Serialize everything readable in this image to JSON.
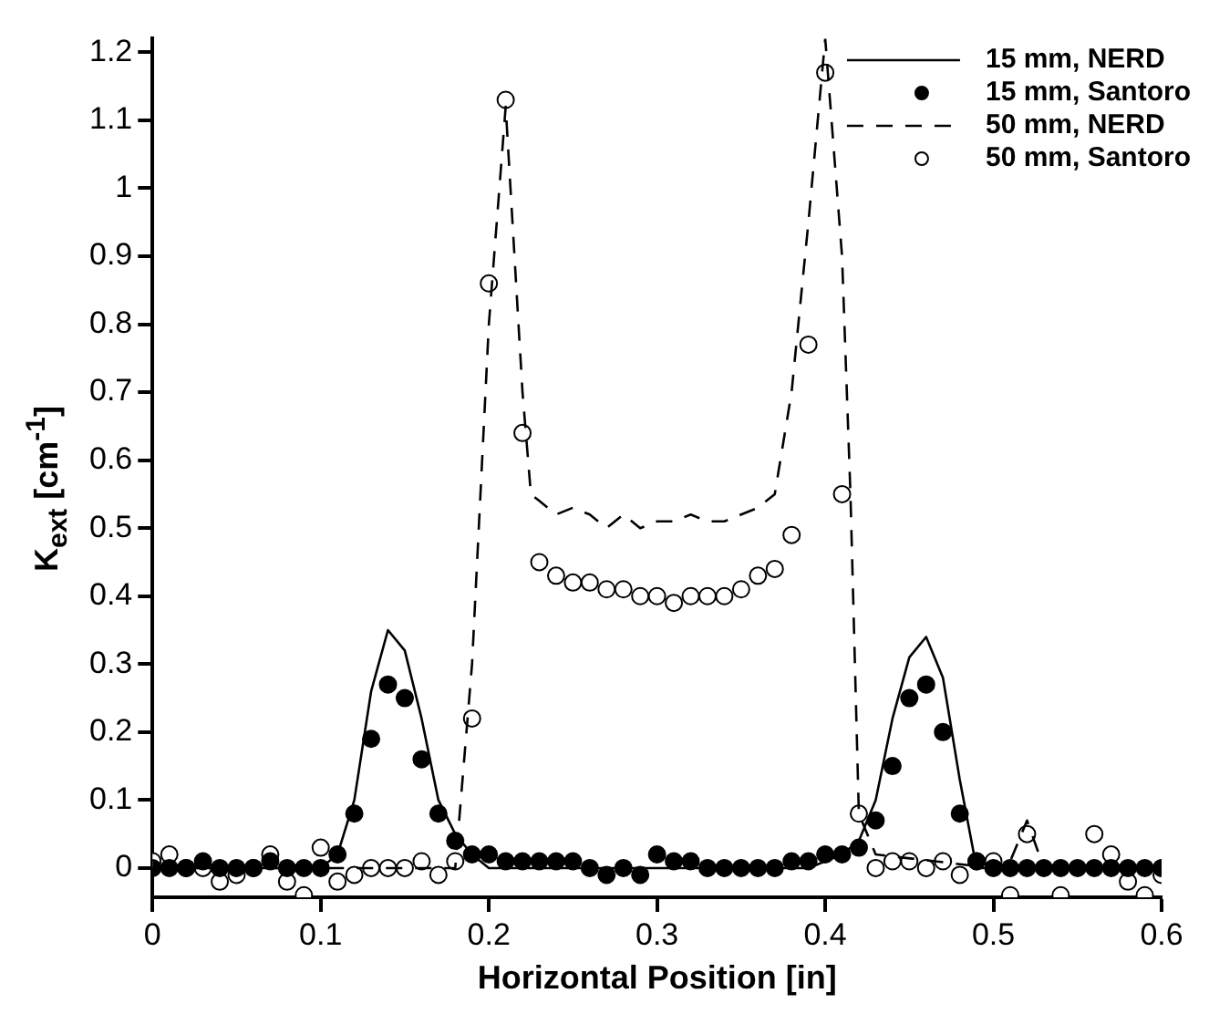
{
  "chart_data": {
    "type": "line",
    "xlabel": "Horizontal Position [in]",
    "ylabel": "K$_{ext}$ [cm$^{-1}$]",
    "xlim": [
      0,
      0.6
    ],
    "xticks": [
      0,
      0.1,
      0.2,
      0.3,
      0.4,
      0.5,
      0.6
    ],
    "ylim": [
      -0.043,
      1.22
    ],
    "yticks": [
      0,
      0.1,
      0.2,
      0.3,
      0.4,
      0.5,
      0.6,
      0.7,
      0.8,
      0.9,
      1,
      1.1,
      1.2
    ],
    "legend": "top right",
    "series": [
      {
        "name": "15 mm, NERD",
        "color": "#000000",
        "line_style": "solid",
        "marker": "none",
        "x": [
          0,
          0.1,
          0.11,
          0.12,
          0.13,
          0.14,
          0.15,
          0.16,
          0.17,
          0.18,
          0.19,
          0.2,
          0.39,
          0.4,
          0.41,
          0.42,
          0.43,
          0.44,
          0.45,
          0.46,
          0.47,
          0.48,
          0.49,
          0.6
        ],
        "values": [
          0,
          0,
          0.02,
          0.1,
          0.26,
          0.35,
          0.32,
          0.22,
          0.1,
          0.05,
          0.02,
          0,
          0,
          0.01,
          0.02,
          0.04,
          0.1,
          0.22,
          0.31,
          0.34,
          0.28,
          0.13,
          0,
          0
        ]
      },
      {
        "name": "15 mm, Santoro",
        "type": "scatter",
        "color": "#000000",
        "marker": "circle",
        "x": [
          0,
          0.01,
          0.02,
          0.03,
          0.04,
          0.05,
          0.06,
          0.07,
          0.08,
          0.09,
          0.1,
          0.11,
          0.12,
          0.13,
          0.14,
          0.15,
          0.16,
          0.17,
          0.18,
          0.19,
          0.2,
          0.21,
          0.22,
          0.23,
          0.24,
          0.25,
          0.26,
          0.27,
          0.28,
          0.29,
          0.3,
          0.31,
          0.32,
          0.33,
          0.34,
          0.35,
          0.36,
          0.37,
          0.38,
          0.39,
          0.4,
          0.41,
          0.42,
          0.43,
          0.44,
          0.45,
          0.46,
          0.47,
          0.48,
          0.49,
          0.5,
          0.51,
          0.52,
          0.53,
          0.54,
          0.55,
          0.56,
          0.57,
          0.58,
          0.59,
          0.6
        ],
        "values": [
          0,
          0,
          0,
          0.01,
          0,
          0,
          0,
          0.01,
          0,
          0,
          0,
          0.02,
          0.08,
          0.19,
          0.27,
          0.25,
          0.16,
          0.08,
          0.04,
          0.02,
          0.02,
          0.01,
          0.01,
          0.01,
          0.01,
          0.01,
          0,
          -0.01,
          0,
          -0.01,
          0.02,
          0.01,
          0.01,
          0,
          0,
          0,
          0,
          0,
          0.01,
          0.01,
          0.02,
          0.02,
          0.03,
          0.07,
          0.15,
          0.25,
          0.27,
          0.2,
          0.08,
          0.01,
          0,
          0,
          0,
          0,
          0,
          0,
          0,
          0,
          0,
          0,
          0
        ]
      },
      {
        "name": "50 mm, NERD",
        "color": "#000000",
        "line_style": "dashed",
        "marker": "none",
        "x": [
          0,
          0.18,
          0.19,
          0.2,
          0.21,
          0.22,
          0.225,
          0.23,
          0.24,
          0.25,
          0.26,
          0.27,
          0.28,
          0.29,
          0.3,
          0.31,
          0.32,
          0.33,
          0.34,
          0.35,
          0.36,
          0.37,
          0.38,
          0.39,
          0.4,
          0.41,
          0.415,
          0.42,
          0.43,
          0.5,
          0.51,
          0.52,
          0.53,
          0.6
        ],
        "values": [
          0,
          0,
          0.3,
          0.8,
          1.12,
          0.7,
          0.55,
          0.54,
          0.52,
          0.53,
          0.52,
          0.5,
          0.52,
          0.5,
          0.51,
          0.51,
          0.52,
          0.51,
          0.51,
          0.52,
          0.53,
          0.55,
          0.7,
          0.95,
          1.22,
          0.9,
          0.55,
          0.08,
          0.02,
          0,
          0.01,
          0.07,
          0,
          0
        ]
      },
      {
        "name": "50 mm, Santoro",
        "type": "scatter",
        "color": "#000000",
        "marker": "circle",
        "x": [
          0,
          0.01,
          0.02,
          0.03,
          0.04,
          0.05,
          0.06,
          0.07,
          0.08,
          0.09,
          0.1,
          0.11,
          0.12,
          0.13,
          0.14,
          0.15,
          0.16,
          0.17,
          0.18,
          0.19,
          0.2,
          0.21,
          0.22,
          0.23,
          0.24,
          0.25,
          0.26,
          0.27,
          0.28,
          0.29,
          0.3,
          0.31,
          0.32,
          0.33,
          0.34,
          0.35,
          0.36,
          0.37,
          0.38,
          0.39,
          0.4,
          0.41,
          0.42,
          0.43,
          0.44,
          0.45,
          0.46,
          0.47,
          0.48,
          0.49,
          0.5,
          0.51,
          0.52,
          0.54,
          0.56,
          0.57,
          0.58,
          0.59,
          0.6
        ],
        "values": [
          0.01,
          0.02,
          0,
          0,
          -0.02,
          -0.01,
          0,
          0.02,
          -0.02,
          -0.04,
          0.03,
          -0.02,
          -0.01,
          0,
          0,
          0,
          0.01,
          -0.01,
          0.01,
          0.22,
          0.86,
          1.13,
          0.64,
          0.45,
          0.43,
          0.42,
          0.42,
          0.41,
          0.41,
          0.4,
          0.4,
          0.39,
          0.4,
          0.4,
          0.4,
          0.41,
          0.43,
          0.44,
          0.49,
          0.77,
          1.17,
          0.55,
          0.08,
          0,
          0.01,
          0.01,
          0,
          0.01,
          -0.01,
          0.01,
          0.01,
          -0.04,
          0.05,
          -0.04,
          0.05,
          0.02,
          -0.02,
          -0.04,
          -0.01
        ]
      }
    ]
  }
}
